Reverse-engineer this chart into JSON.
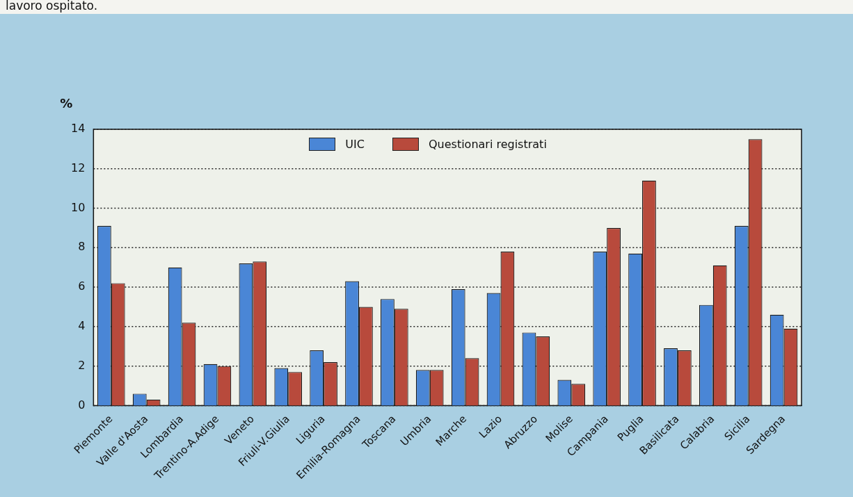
{
  "chart_data": {
    "type": "bar",
    "ylabel": "%",
    "annotations": [
      "lavoro ospitato."
    ],
    "categories": [
      "Piemonte",
      "Valle d'Aosta",
      "Lombardia",
      "Trentino-A.Adige",
      "Veneto",
      "Friuli-V.Giulia",
      "Liguria",
      "Emilia-Romagna",
      "Toscana",
      "Umbria",
      "Marche",
      "Lazio",
      "Abruzzo",
      "Molise",
      "Campania",
      "Puglia",
      "Basilicata",
      "Calabria",
      "Sicilia",
      "Sardegna"
    ],
    "series": [
      {
        "name": "UIC",
        "color": "#4a86d6",
        "values": [
          9.1,
          0.6,
          7.0,
          2.1,
          7.2,
          1.9,
          2.8,
          6.3,
          5.4,
          1.8,
          5.9,
          5.7,
          3.7,
          1.3,
          7.8,
          7.7,
          2.9,
          5.1,
          9.1,
          4.6
        ]
      },
      {
        "name": "Questionari registrati",
        "color": "#b84a3c",
        "values": [
          6.2,
          0.3,
          4.2,
          2.0,
          7.3,
          1.7,
          2.2,
          5.0,
          4.9,
          1.8,
          2.4,
          7.8,
          3.5,
          1.1,
          9.0,
          11.4,
          2.8,
          7.1,
          13.5,
          3.9
        ]
      }
    ],
    "ylim": [
      0,
      14
    ],
    "yticks": [
      0,
      2,
      4,
      6,
      8,
      10,
      12,
      14
    ],
    "grid": "y",
    "legend": "top"
  }
}
